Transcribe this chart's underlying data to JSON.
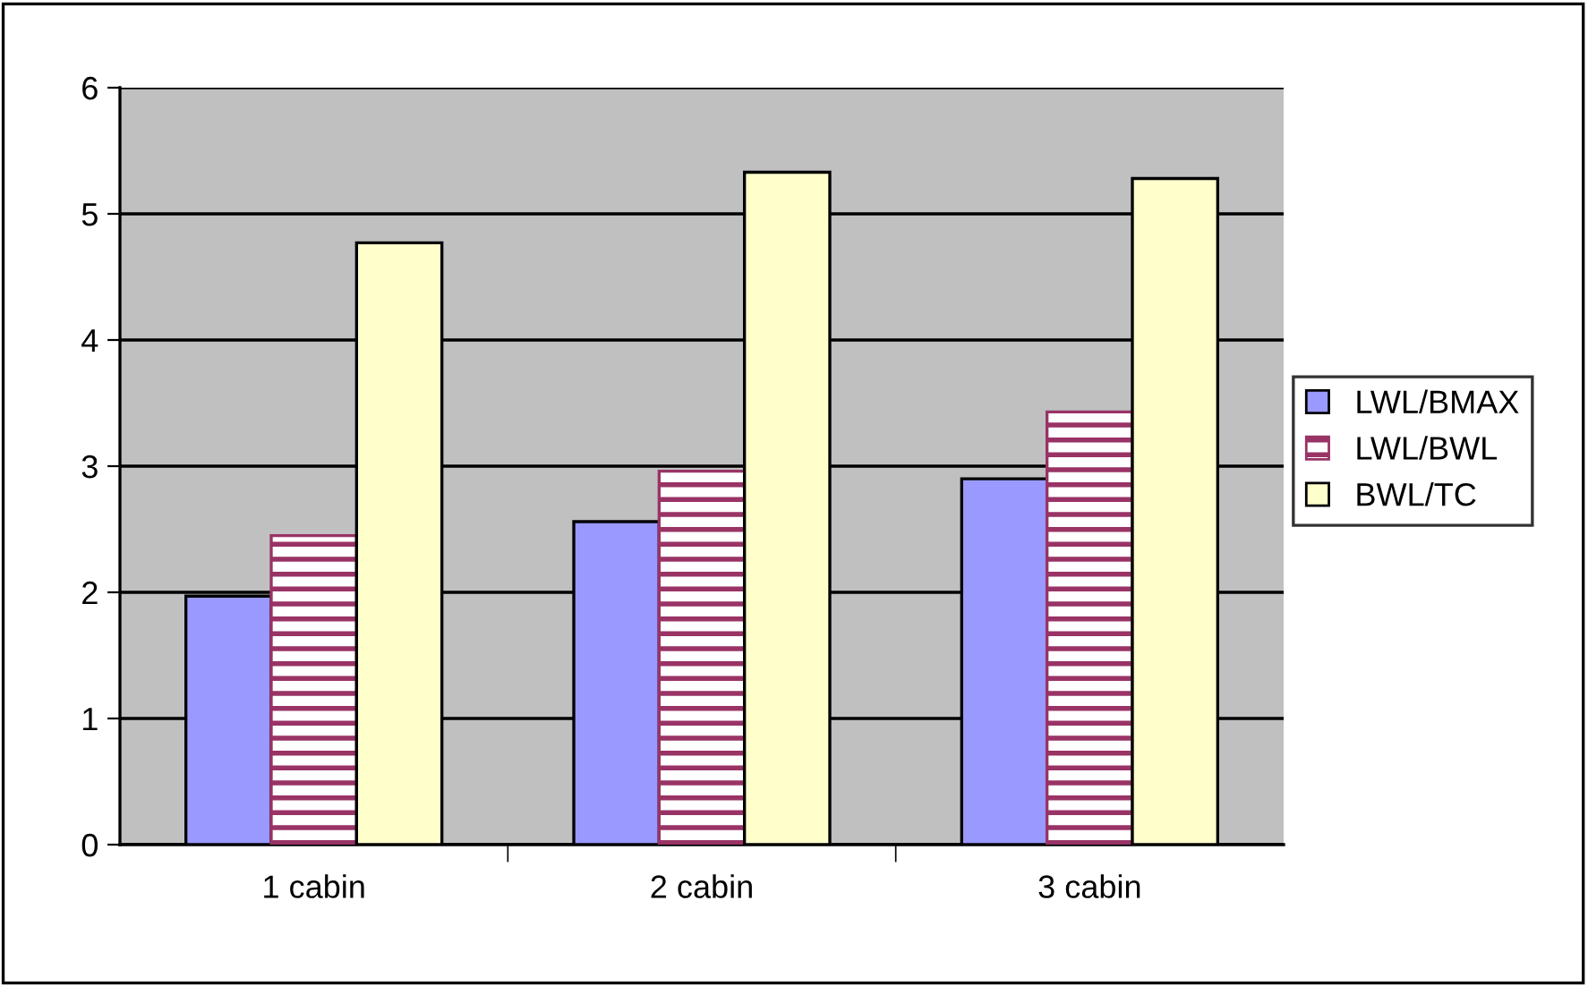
{
  "chart_data": {
    "type": "bar",
    "categories": [
      "1 cabin",
      "2 cabin",
      "3 cabin"
    ],
    "series": [
      {
        "name": "LWL/BMAX",
        "color": "#9999ff",
        "values": [
          1.97,
          2.56,
          2.9
        ]
      },
      {
        "name": "LWL/BWL",
        "color": "#993366",
        "values": [
          2.45,
          2.96,
          3.43
        ]
      },
      {
        "name": "BWL/TC",
        "color": "#ffffcc",
        "values": [
          4.77,
          5.33,
          5.28
        ]
      }
    ],
    "ylim": [
      0,
      6
    ],
    "yticks": [
      0,
      1,
      2,
      3,
      4,
      5,
      6
    ],
    "grid": "y",
    "legend": "right"
  }
}
